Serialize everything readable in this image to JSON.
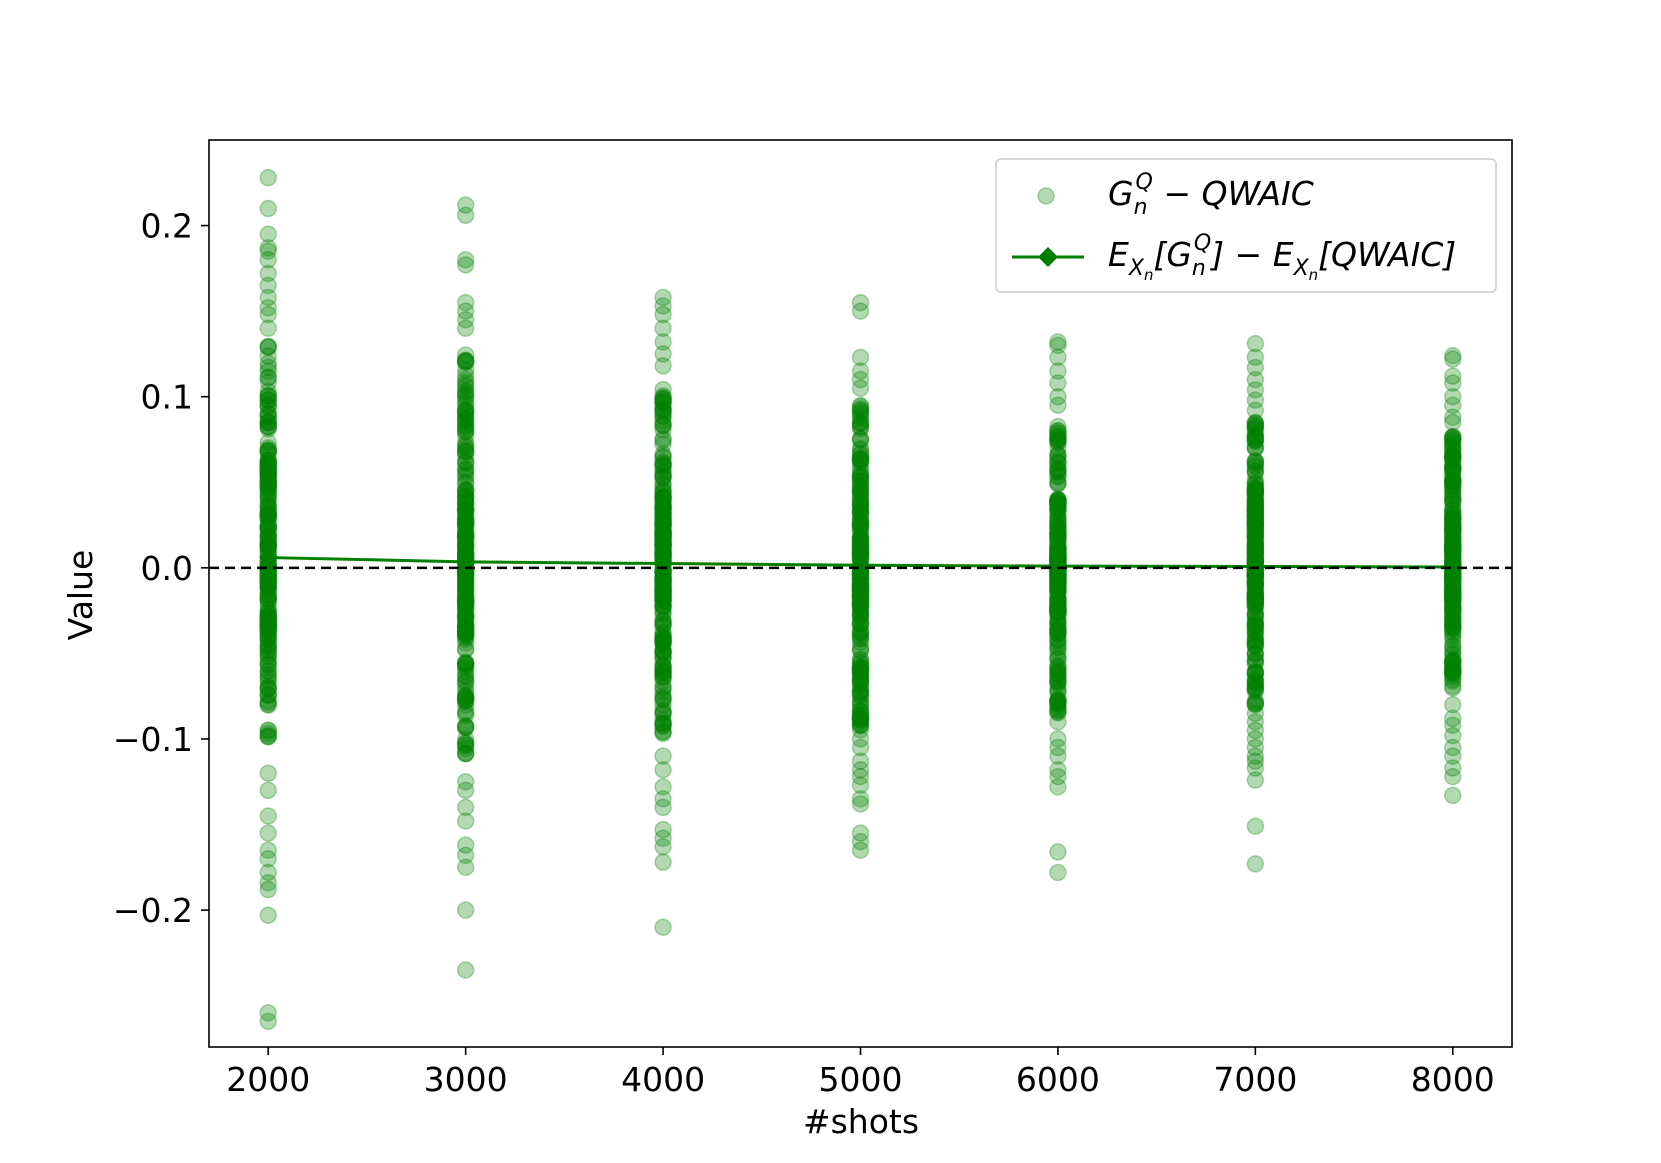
{
  "chart_data": {
    "type": "scatter",
    "xlabel": "#shots",
    "ylabel": "Value",
    "xlim": [
      1700,
      8300
    ],
    "ylim": [
      -0.28,
      0.25
    ],
    "x_ticks": [
      2000,
      3000,
      4000,
      5000,
      6000,
      7000,
      8000
    ],
    "y_ticks": [
      -0.2,
      -0.1,
      0.0,
      0.1,
      0.2
    ],
    "y_tick_labels": [
      "−0.2",
      "−0.1",
      "0.0",
      "0.1",
      "0.2"
    ],
    "x_tick_labels": [
      "2000",
      "3000",
      "4000",
      "5000",
      "6000",
      "7000",
      "8000"
    ],
    "reference_line": {
      "y": 0.0,
      "style": "dashed",
      "color": "#000000"
    },
    "legend_position": "upper-right",
    "grid": false,
    "series": [
      {
        "name": "G_n^Q − QWAIC",
        "kind": "scatter",
        "color": "#008000",
        "alpha": 0.3,
        "groups": [
          {
            "x": 2000,
            "max": 0.228,
            "min": -0.265,
            "dense_max": 0.13,
            "dense_min": -0.1,
            "outliers": [
              0.228,
              0.21,
              0.195,
              0.187,
              0.185,
              0.18,
              0.172,
              0.165,
              0.158,
              0.152,
              0.148,
              0.14,
              -0.12,
              -0.13,
              -0.145,
              -0.155,
              -0.165,
              -0.17,
              -0.178,
              -0.184,
              -0.188,
              -0.203,
              -0.26,
              -0.265
            ]
          },
          {
            "x": 3000,
            "max": 0.212,
            "min": -0.235,
            "dense_max": 0.13,
            "dense_min": -0.11,
            "outliers": [
              0.212,
              0.206,
              0.18,
              0.177,
              0.155,
              0.15,
              0.145,
              0.14,
              -0.125,
              -0.13,
              -0.14,
              -0.148,
              -0.162,
              -0.168,
              -0.175,
              -0.2,
              -0.235
            ]
          },
          {
            "x": 4000,
            "max": 0.158,
            "min": -0.21,
            "dense_max": 0.105,
            "dense_min": -0.1,
            "outliers": [
              0.158,
              0.153,
              0.148,
              0.14,
              0.132,
              0.125,
              0.118,
              -0.11,
              -0.118,
              -0.128,
              -0.135,
              -0.14,
              -0.153,
              -0.158,
              -0.163,
              -0.172,
              -0.21
            ]
          },
          {
            "x": 5000,
            "max": 0.155,
            "min": -0.165,
            "dense_max": 0.095,
            "dense_min": -0.095,
            "outliers": [
              0.155,
              0.15,
              0.123,
              0.115,
              0.11,
              0.105,
              -0.1,
              -0.105,
              -0.113,
              -0.118,
              -0.122,
              -0.127,
              -0.135,
              -0.138,
              -0.155,
              -0.16,
              -0.165
            ]
          },
          {
            "x": 6000,
            "max": 0.132,
            "min": -0.178,
            "dense_max": 0.085,
            "dense_min": -0.085,
            "outliers": [
              0.132,
              0.13,
              0.123,
              0.115,
              0.108,
              0.1,
              0.095,
              -0.09,
              -0.1,
              -0.105,
              -0.11,
              -0.118,
              -0.122,
              -0.128,
              -0.166,
              -0.178
            ]
          },
          {
            "x": 7000,
            "max": 0.131,
            "min": -0.173,
            "dense_max": 0.085,
            "dense_min": -0.08,
            "outliers": [
              0.131,
              0.123,
              0.117,
              0.11,
              0.104,
              0.098,
              0.092,
              -0.085,
              -0.09,
              -0.095,
              -0.1,
              -0.105,
              -0.11,
              -0.113,
              -0.117,
              -0.124,
              -0.151,
              -0.173
            ]
          },
          {
            "x": 8000,
            "max": 0.124,
            "min": -0.133,
            "dense_max": 0.08,
            "dense_min": -0.075,
            "outliers": [
              0.124,
              0.122,
              0.112,
              0.108,
              0.1,
              0.095,
              0.088,
              0.085,
              -0.08,
              -0.088,
              -0.092,
              -0.098,
              -0.105,
              -0.11,
              -0.117,
              -0.122,
              -0.133
            ]
          }
        ]
      },
      {
        "name": "E_Xn[G_n^Q] − E_Xn[QWAIC]",
        "kind": "line",
        "marker": "diamond",
        "color": "#008000",
        "x": [
          2000,
          3000,
          4000,
          5000,
          6000,
          7000,
          8000
        ],
        "y": [
          0.006,
          0.0035,
          0.0025,
          0.0015,
          0.001,
          0.0008,
          0.0005
        ]
      }
    ],
    "legend": {
      "entry1": {
        "G": "G",
        "sub_n": "n",
        "sup_Q": "Q",
        "rest": " − QWAIC"
      },
      "entry2": {
        "E1": "E",
        "sub_X1": "X",
        "sub_n1": "n",
        "open": "[",
        "G": "G",
        "sub_n": "n",
        "sup_Q": "Q",
        "close_minus": "] − ",
        "E2": "E",
        "sub_X2": "X",
        "sub_n2": "n",
        "tail": "[QWAIC]"
      }
    }
  }
}
